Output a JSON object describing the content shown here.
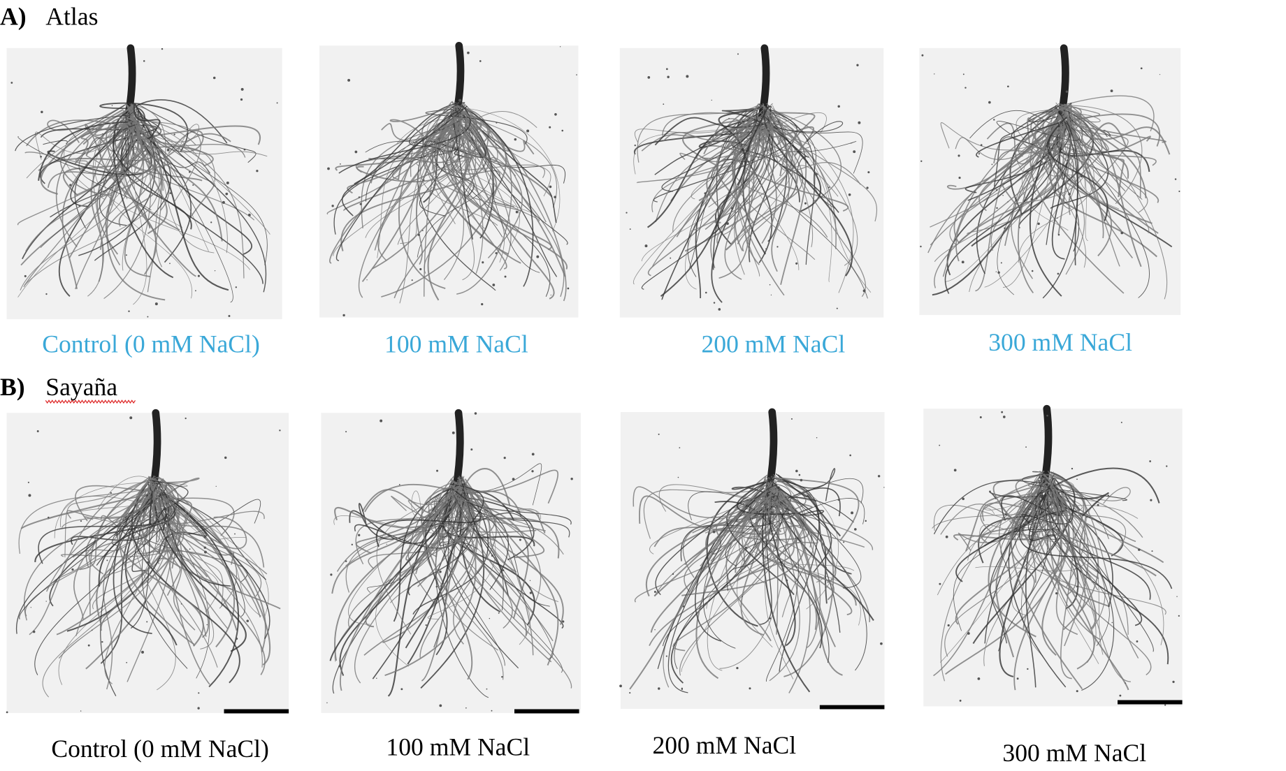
{
  "panels": [
    {
      "label": "A)",
      "title": "Atlas",
      "images": [
        {
          "caption": "Control (0 mM NaCl)"
        },
        {
          "caption": "100 mM NaCl"
        },
        {
          "caption": "200 mM NaCl"
        },
        {
          "caption": "300 mM NaCl"
        }
      ]
    },
    {
      "label": "B)",
      "title": "Sayaña",
      "images": [
        {
          "caption": "Control (0 mM NaCl)"
        },
        {
          "caption": "100 mM NaCl"
        },
        {
          "caption": "200 mM NaCl"
        },
        {
          "caption": "300 mM NaCl"
        }
      ]
    }
  ]
}
